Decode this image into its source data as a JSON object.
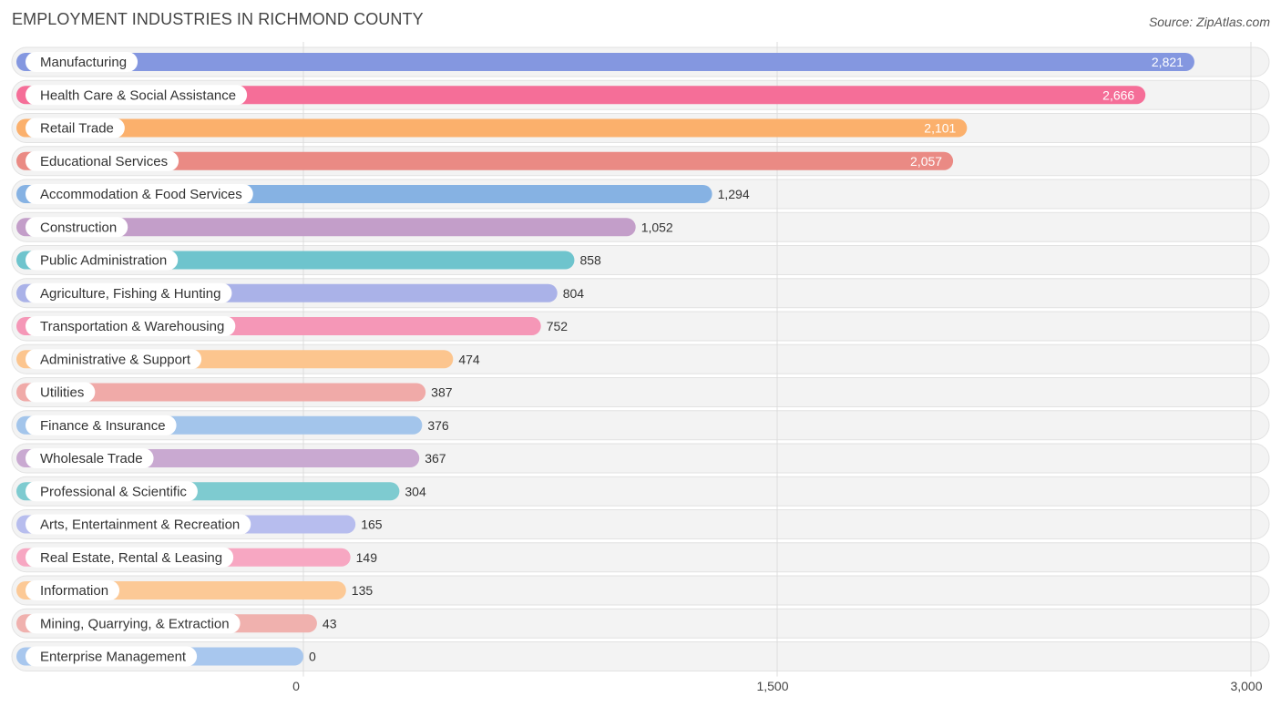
{
  "header": {
    "title": "EMPLOYMENT INDUSTRIES IN RICHMOND COUNTY",
    "source": "Source: ZipAtlas.com"
  },
  "chart_data": {
    "type": "bar",
    "orientation": "horizontal",
    "title": "EMPLOYMENT INDUSTRIES IN RICHMOND COUNTY",
    "xlabel": "",
    "ylabel": "",
    "xlim": [
      0,
      3000
    ],
    "ticks": [
      {
        "value": 0,
        "label": "0"
      },
      {
        "value": 1500,
        "label": "1,500"
      },
      {
        "value": 3000,
        "label": "3,000"
      }
    ],
    "grid": true,
    "categories": [
      "Manufacturing",
      "Health Care & Social Assistance",
      "Retail Trade",
      "Educational Services",
      "Accommodation & Food Services",
      "Construction",
      "Public Administration",
      "Agriculture, Fishing & Hunting",
      "Transportation & Warehousing",
      "Administrative & Support",
      "Utilities",
      "Finance & Insurance",
      "Wholesale Trade",
      "Professional & Scientific",
      "Arts, Entertainment & Recreation",
      "Real Estate, Rental & Leasing",
      "Information",
      "Mining, Quarrying, & Extraction",
      "Enterprise Management"
    ],
    "values": [
      2821,
      2666,
      2101,
      2057,
      1294,
      1052,
      858,
      804,
      752,
      474,
      387,
      376,
      367,
      304,
      165,
      149,
      135,
      43,
      0
    ],
    "value_labels": [
      "2,821",
      "2,666",
      "2,101",
      "2,057",
      "1,294",
      "1,052",
      "858",
      "804",
      "752",
      "474",
      "387",
      "376",
      "367",
      "304",
      "165",
      "149",
      "135",
      "43",
      "0"
    ],
    "colors": [
      "#8497e0",
      "#f56e98",
      "#fbb06c",
      "#ea8a84",
      "#86b2e3",
      "#c39ec9",
      "#6ec4cd",
      "#aab2e8",
      "#f597b7",
      "#fcc58e",
      "#f0aaa8",
      "#a3c5eb",
      "#c9a9d1",
      "#7ecbd0",
      "#b7bdee",
      "#f7a7c2",
      "#fcc996",
      "#f0b1ae",
      "#a8c7ee"
    ]
  }
}
